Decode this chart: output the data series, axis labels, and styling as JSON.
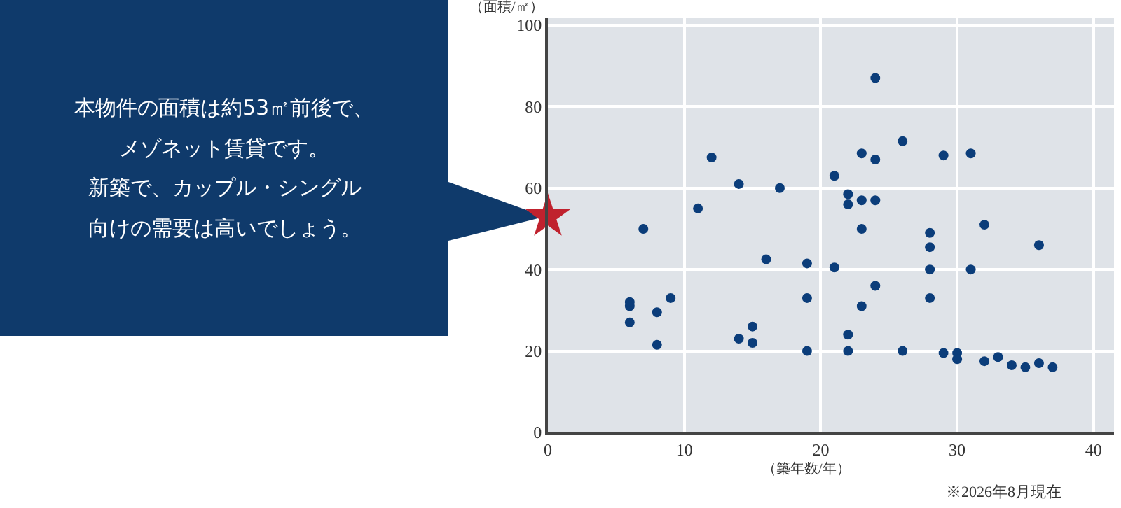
{
  "chart_data": {
    "type": "scatter",
    "xlabel": "（築年数/年）",
    "ylabel": "（面積/㎡）",
    "xlim": [
      0,
      41.5
    ],
    "ylim": [
      0,
      101.7
    ],
    "xticks": [
      0,
      10,
      20,
      30,
      40
    ],
    "yticks": [
      0,
      20,
      40,
      60,
      80,
      100
    ],
    "grid": true,
    "series": [
      {
        "color": "#0b3d7a",
        "marker": "circle",
        "x": [
          6,
          6,
          6,
          7,
          8,
          8,
          9,
          11,
          12,
          14,
          14,
          15,
          15,
          16,
          17,
          19,
          19,
          19,
          21,
          21,
          22,
          22,
          22,
          22,
          23,
          23,
          23,
          23,
          24,
          24,
          24,
          24,
          26,
          26,
          28,
          28,
          28,
          28,
          29,
          29,
          30,
          30,
          31,
          31,
          32,
          32,
          33,
          34,
          35,
          36,
          36,
          37
        ],
        "values": [
          31,
          32,
          27,
          50,
          29.5,
          21.5,
          33,
          55,
          67.5,
          61,
          23,
          26,
          22,
          42.5,
          60,
          41.5,
          33,
          20,
          63,
          40.5,
          58.5,
          56,
          24,
          20,
          68.5,
          57,
          50,
          31,
          87,
          67,
          57,
          36,
          71.5,
          20,
          49,
          45.5,
          40,
          33,
          68,
          19.5,
          19.5,
          18,
          68.5,
          40,
          51,
          17.5,
          18.5,
          16.5,
          16,
          46,
          17,
          16
        ]
      },
      {
        "color": "#c0222e",
        "marker": "star",
        "x": [
          0
        ],
        "values": [
          53
        ]
      }
    ],
    "annotations": [
      "本物件の面積は約53㎡前後で、",
      "メゾネット賃貸です。",
      "新築で、カップル・シングル",
      "向けの需要は高いでしょう。",
      "※2026年8月現在"
    ]
  }
}
